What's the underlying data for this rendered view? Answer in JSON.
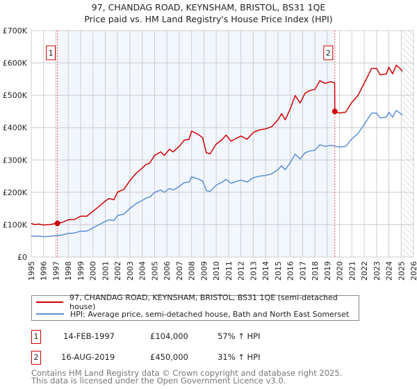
{
  "chart_data": {
    "type": "line",
    "title": "97, CHANDAG ROAD, KEYNSHAM, BRISTOL, BS31 1QE",
    "subtitle": "Price paid vs. HM Land Registry's House Price Index (HPI)",
    "xlim": [
      1995,
      2026
    ],
    "ylim": [
      0,
      700000
    ],
    "grid": true,
    "x_ticks": [
      "1995",
      "1996",
      "1997",
      "1998",
      "1999",
      "2000",
      "2001",
      "2002",
      "2003",
      "2004",
      "2005",
      "2006",
      "2007",
      "2008",
      "2009",
      "2010",
      "2011",
      "2012",
      "2013",
      "2014",
      "2015",
      "2016",
      "2017",
      "2018",
      "2019",
      "2020",
      "2021",
      "2022",
      "2023",
      "2024",
      "2025",
      "2026"
    ],
    "y_ticks": [
      {
        "v": 0,
        "label": "£0"
      },
      {
        "v": 100000,
        "label": "£100K"
      },
      {
        "v": 200000,
        "label": "£200K"
      },
      {
        "v": 300000,
        "label": "£300K"
      },
      {
        "v": 400000,
        "label": "£400K"
      },
      {
        "v": 500000,
        "label": "£500K"
      },
      {
        "v": 600000,
        "label": "£600K"
      },
      {
        "v": 700000,
        "label": "£700K"
      }
    ],
    "shaded_range": [
      1997.12,
      2019.62
    ],
    "forecast_hatch_from": 2025.1,
    "series": [
      {
        "name": "97, CHANDAG ROAD, KEYNSHAM, BRISTOL, BS31 1QE (semi-detached house)",
        "color": "#cc0000",
        "x": [
          1995.0,
          1995.3,
          1995.6,
          1996.0,
          1996.5,
          1997.0,
          1997.12,
          1997.5,
          1998.0,
          1998.5,
          1999.0,
          1999.5,
          2000.0,
          2000.5,
          2001.0,
          2001.3,
          2001.7,
          2002.0,
          2002.5,
          2003.0,
          2003.5,
          2004.0,
          2004.3,
          2004.6,
          2005.0,
          2005.5,
          2005.8,
          2006.2,
          2006.5,
          2007.0,
          2007.4,
          2007.8,
          2008.0,
          2008.5,
          2008.9,
          2009.2,
          2009.5,
          2010.0,
          2010.5,
          2010.8,
          2011.2,
          2011.6,
          2012.0,
          2012.5,
          2013.0,
          2013.5,
          2014.0,
          2014.5,
          2015.0,
          2015.3,
          2015.6,
          2016.0,
          2016.4,
          2016.8,
          2017.2,
          2017.6,
          2018.0,
          2018.4,
          2018.8,
          2019.3,
          2019.6,
          2019.62,
          2020.0,
          2020.5,
          2021.0,
          2021.5,
          2022.0,
          2022.6,
          2023.0,
          2023.3,
          2023.8,
          2024.0,
          2024.3,
          2024.6,
          2024.9,
          2025.1
        ],
        "y": [
          104,
          100,
          102,
          99,
          100,
          104,
          104,
          107,
          115,
          116,
          126,
          126,
          141,
          157,
          173,
          181,
          177,
          201,
          209,
          236,
          259,
          275,
          286,
          290,
          314,
          325,
          314,
          333,
          325,
          342,
          361,
          364,
          389,
          380,
          369,
          322,
          319,
          349,
          364,
          377,
          358,
          366,
          374,
          364,
          385,
          393,
          396,
          403,
          424,
          443,
          424,
          458,
          499,
          476,
          506,
          515,
          518,
          545,
          537,
          542,
          538,
          450,
          445,
          448,
          478,
          500,
          537,
          583,
          583,
          563,
          566,
          587,
          566,
          593,
          583,
          574
        ],
        "y_unit": "thousand GBP"
      },
      {
        "name": "HPI: Average price, semi-detached house, Bath and North East Somerset",
        "color": "#5b8fd4",
        "x": [
          1995.0,
          1995.3,
          1995.6,
          1996.0,
          1996.5,
          1997.0,
          1997.12,
          1997.5,
          1998.0,
          1998.5,
          1999.0,
          1999.5,
          2000.0,
          2000.5,
          2001.0,
          2001.3,
          2001.7,
          2002.0,
          2002.5,
          2003.0,
          2003.5,
          2004.0,
          2004.3,
          2004.6,
          2005.0,
          2005.5,
          2005.8,
          2006.2,
          2006.5,
          2007.0,
          2007.4,
          2007.8,
          2008.0,
          2008.5,
          2008.9,
          2009.2,
          2009.5,
          2010.0,
          2010.5,
          2010.8,
          2011.2,
          2011.6,
          2012.0,
          2012.5,
          2013.0,
          2013.5,
          2014.0,
          2014.5,
          2015.0,
          2015.3,
          2015.6,
          2016.0,
          2016.4,
          2016.8,
          2017.2,
          2017.6,
          2018.0,
          2018.4,
          2018.8,
          2019.3,
          2019.62,
          2020.0,
          2020.5,
          2021.0,
          2021.5,
          2022.0,
          2022.6,
          2023.0,
          2023.3,
          2023.8,
          2024.0,
          2024.3,
          2024.6,
          2024.9,
          2025.1
        ],
        "y": [
          66,
          64,
          65,
          63,
          64,
          66,
          66,
          68,
          73,
          74,
          80,
          80,
          90,
          100,
          110,
          115,
          113,
          128,
          133,
          150,
          165,
          175,
          182,
          185,
          200,
          207,
          200,
          212,
          207,
          218,
          230,
          232,
          248,
          242,
          235,
          205,
          203,
          222,
          232,
          240,
          228,
          233,
          238,
          232,
          245,
          250,
          252,
          257,
          270,
          282,
          270,
          292,
          318,
          303,
          322,
          328,
          330,
          347,
          342,
          345,
          343,
          340,
          342,
          365,
          382,
          410,
          445,
          445,
          430,
          432,
          448,
          432,
          453,
          445,
          438
        ],
        "y_unit": "thousand GBP"
      }
    ],
    "annotations": [
      {
        "label": "1",
        "x": 1997.12,
        "y": 104
      },
      {
        "label": "2",
        "x": 2019.62,
        "y": 450
      }
    ]
  },
  "legend": {
    "property": "97, CHANDAG ROAD, KEYNSHAM, BRISTOL, BS31 1QE (semi-detached house)",
    "hpi": "HPI: Average price, semi-detached house, Bath and North East Somerset"
  },
  "transactions": [
    {
      "num": "1",
      "date": "14-FEB-1997",
      "price": "£104,000",
      "hpi": "57% ↑ HPI"
    },
    {
      "num": "2",
      "date": "16-AUG-2019",
      "price": "£450,000",
      "hpi": "31% ↑ HPI"
    }
  ],
  "footer": {
    "line1": "Contains HM Land Registry data © Crown copyright and database right 2025.",
    "line2": "This data is licensed under the Open Government Licence v3.0."
  }
}
